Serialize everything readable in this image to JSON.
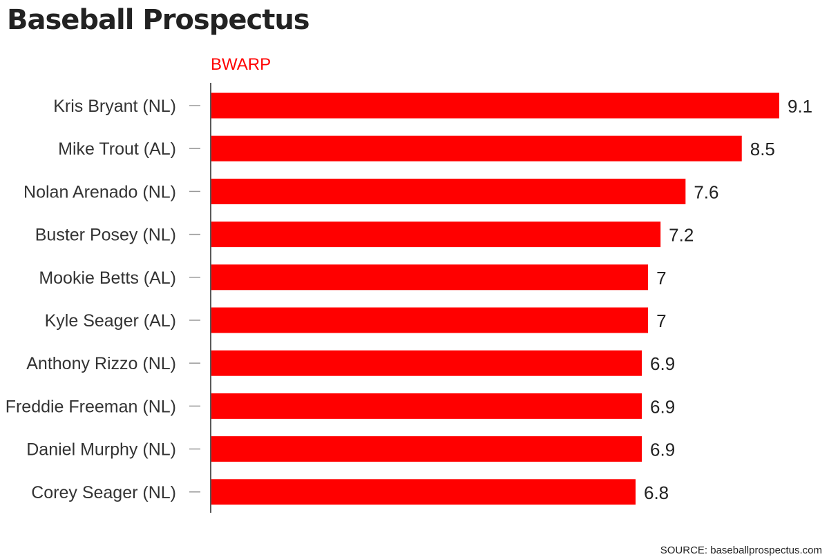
{
  "page": {
    "title": "Baseball Prospectus",
    "source": "SOURCE: baseballprospectus.com"
  },
  "chart_data": {
    "type": "bar",
    "orientation": "horizontal",
    "categories": [
      "Kris Bryant (NL)",
      "Mike Trout (AL)",
      "Nolan Arenado (NL)",
      "Buster Posey (NL)",
      "Mookie Betts (AL)",
      "Kyle Seager (AL)",
      "Anthony Rizzo (NL)",
      "Freddie Freeman (NL)",
      "Daniel Murphy (NL)",
      "Corey Seager (NL)"
    ],
    "series": [
      {
        "name": "BWARP",
        "values": [
          9.1,
          8.5,
          7.6,
          7.2,
          7,
          7,
          6.9,
          6.9,
          6.9,
          6.8
        ],
        "color": "#ff0000"
      }
    ],
    "value_labels": [
      "9.1",
      "8.5",
      "7.6",
      "7.2",
      "7",
      "7",
      "6.9",
      "6.9",
      "6.9",
      "6.8"
    ],
    "xlim": [
      0,
      9.1
    ],
    "grid": false,
    "colors": {
      "bar": "#ff0000",
      "series_label": "#ff0000",
      "axis": "#222222",
      "tick": "#999999"
    }
  }
}
